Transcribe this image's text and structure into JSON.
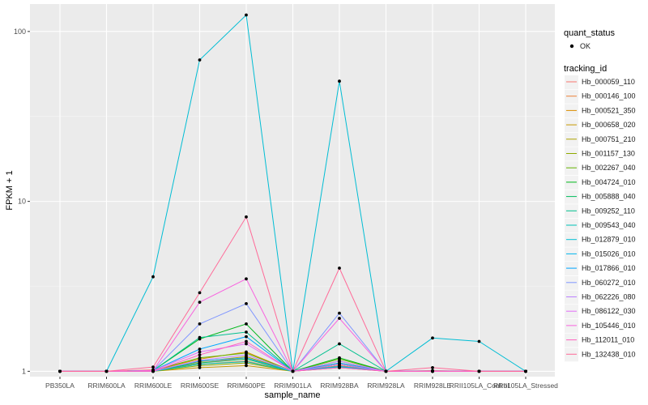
{
  "chart_data": {
    "type": "line",
    "xlabel": "sample_name",
    "ylabel": "FPKM + 1",
    "yscale": "log10",
    "ylim": [
      0.93,
      145
    ],
    "yticks": [
      {
        "value": 1,
        "label": "1"
      },
      {
        "value": 10,
        "label": "10"
      },
      {
        "value": 100,
        "label": "100"
      }
    ],
    "categories": [
      "PB350LA",
      "RRIM600LA",
      "RRIM600LE",
      "RRIM600SE",
      "RRIM600PE",
      "RRIM901LA",
      "RRIM928BA",
      "RRIM928LA",
      "RRIM928LE",
      "RRII105LA_Control",
      "RRII105LA_Stressed"
    ],
    "legend": {
      "quant_title": "quant_status",
      "quant_label": "OK",
      "tracking_title": "tracking_id"
    },
    "series": [
      {
        "name": "Hb_000059_110",
        "color": "#F8766D",
        "values": [
          1,
          1,
          1.02,
          1.12,
          1.2,
          1,
          1.1,
          1,
          1.01,
          1,
          1
        ]
      },
      {
        "name": "Hb_000146_100",
        "color": "#EC8239",
        "values": [
          1,
          1,
          1.01,
          1.1,
          1.15,
          1,
          1.08,
          1,
          1,
          1,
          1
        ]
      },
      {
        "name": "Hb_000521_350",
        "color": "#DB8E00",
        "values": [
          1,
          1,
          1.01,
          1.18,
          1.3,
          1,
          1.15,
          1,
          1,
          1,
          1
        ]
      },
      {
        "name": "Hb_000658_020",
        "color": "#C79800",
        "values": [
          1,
          1,
          1,
          1.05,
          1.08,
          1,
          1.05,
          1,
          1,
          1,
          1
        ]
      },
      {
        "name": "Hb_000751_210",
        "color": "#AEA200",
        "values": [
          1,
          1,
          1.01,
          1.14,
          1.22,
          1,
          1.12,
          1,
          1,
          1,
          1
        ]
      },
      {
        "name": "Hb_001157_130",
        "color": "#8FAA00",
        "values": [
          1,
          1,
          1,
          1.08,
          1.12,
          1,
          1.06,
          1,
          1,
          1,
          1
        ]
      },
      {
        "name": "Hb_002267_040",
        "color": "#64B200",
        "values": [
          1,
          1,
          1.01,
          1.2,
          1.28,
          1,
          1.18,
          1,
          1,
          1,
          1
        ]
      },
      {
        "name": "Hb_004724_010",
        "color": "#00B81B",
        "values": [
          1,
          1,
          1.01,
          1.55,
          1.9,
          1,
          1.2,
          1,
          1,
          1,
          1
        ]
      },
      {
        "name": "Hb_005888_040",
        "color": "#00BD5C",
        "values": [
          1,
          1,
          1.01,
          1.12,
          1.18,
          1,
          1.1,
          1,
          1,
          1,
          1
        ]
      },
      {
        "name": "Hb_009252_110",
        "color": "#00C08E",
        "values": [
          1,
          1,
          1.01,
          1.58,
          1.7,
          1,
          1.45,
          1,
          1,
          1,
          1
        ]
      },
      {
        "name": "Hb_009543_040",
        "color": "#00C1B7",
        "values": [
          1,
          1,
          1,
          1.1,
          1.14,
          1,
          1.06,
          1,
          1,
          1,
          1
        ]
      },
      {
        "name": "Hb_012879_010",
        "color": "#00BDD4",
        "values": [
          1,
          1,
          3.6,
          68,
          125,
          1,
          51,
          1,
          1.57,
          1.5,
          1
        ]
      },
      {
        "name": "Hb_015026_010",
        "color": "#00B5EE",
        "values": [
          1,
          1,
          1,
          1.15,
          1.2,
          1,
          1.07,
          1,
          1,
          1,
          1
        ]
      },
      {
        "name": "Hb_017866_010",
        "color": "#00A7FF",
        "values": [
          1,
          1,
          1.01,
          1.35,
          1.6,
          1,
          1.12,
          1,
          1,
          1,
          1
        ]
      },
      {
        "name": "Hb_060272_010",
        "color": "#7F96FF",
        "values": [
          1,
          1,
          1.01,
          1.9,
          2.5,
          1,
          2.2,
          1,
          1,
          1,
          1
        ]
      },
      {
        "name": "Hb_062226_080",
        "color": "#BC81FF",
        "values": [
          1,
          1,
          1,
          1.16,
          1.25,
          1,
          1.15,
          1,
          1,
          1,
          1
        ]
      },
      {
        "name": "Hb_086122_030",
        "color": "#E26EF7",
        "values": [
          1,
          1,
          1.01,
          1.3,
          1.45,
          1,
          1.1,
          1,
          1,
          1,
          1
        ]
      },
      {
        "name": "Hb_105446_010",
        "color": "#F863DF",
        "values": [
          1,
          1,
          1.01,
          2.55,
          3.5,
          1,
          2.05,
          1,
          1,
          1,
          1
        ]
      },
      {
        "name": "Hb_112011_010",
        "color": "#FF62BF",
        "values": [
          1,
          1,
          1,
          1.25,
          1.5,
          1,
          1.05,
          1,
          1,
          1,
          1
        ]
      },
      {
        "name": "Hb_132438_010",
        "color": "#FF6A98",
        "values": [
          1,
          1,
          1.06,
          2.9,
          8.1,
          1,
          4.05,
          1,
          1.05,
          1,
          1
        ]
      }
    ]
  }
}
